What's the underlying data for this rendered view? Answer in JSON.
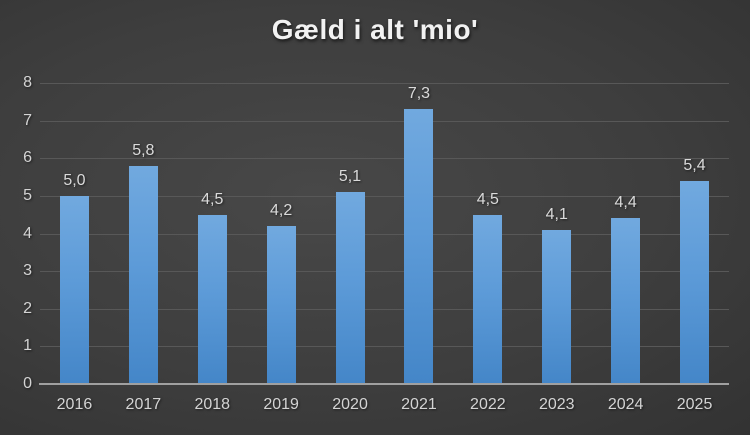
{
  "chart_data": {
    "type": "bar",
    "title": "Gæld i alt 'mio'",
    "categories": [
      "2016",
      "2017",
      "2018",
      "2019",
      "2020",
      "2021",
      "2022",
      "2023",
      "2024",
      "2025"
    ],
    "values": [
      5.0,
      5.8,
      4.5,
      4.2,
      5.1,
      7.3,
      4.5,
      4.1,
      4.4,
      5.4
    ],
    "value_labels": [
      "5,0",
      "5,8",
      "4,5",
      "4,2",
      "5,1",
      "7,3",
      "4,5",
      "4,1",
      "4,4",
      "5,4"
    ],
    "ytick_labels": [
      "0",
      "1",
      "2",
      "3",
      "4",
      "5",
      "6",
      "7",
      "8"
    ],
    "xlabel": "",
    "ylabel": "",
    "ylim": [
      0,
      8
    ],
    "ytick_step": 1,
    "grid": true,
    "legend_position": "none",
    "colors": {
      "bar_top": "#71a9df",
      "bar_bottom": "#4486c8",
      "gridline": "#585858",
      "axis_line": "#a0a0a0",
      "tick_label": "#d4d4d4",
      "data_label": "#dadada",
      "title": "#f2f2f2",
      "background_center": "#484848",
      "background_edge": "#232323"
    }
  }
}
